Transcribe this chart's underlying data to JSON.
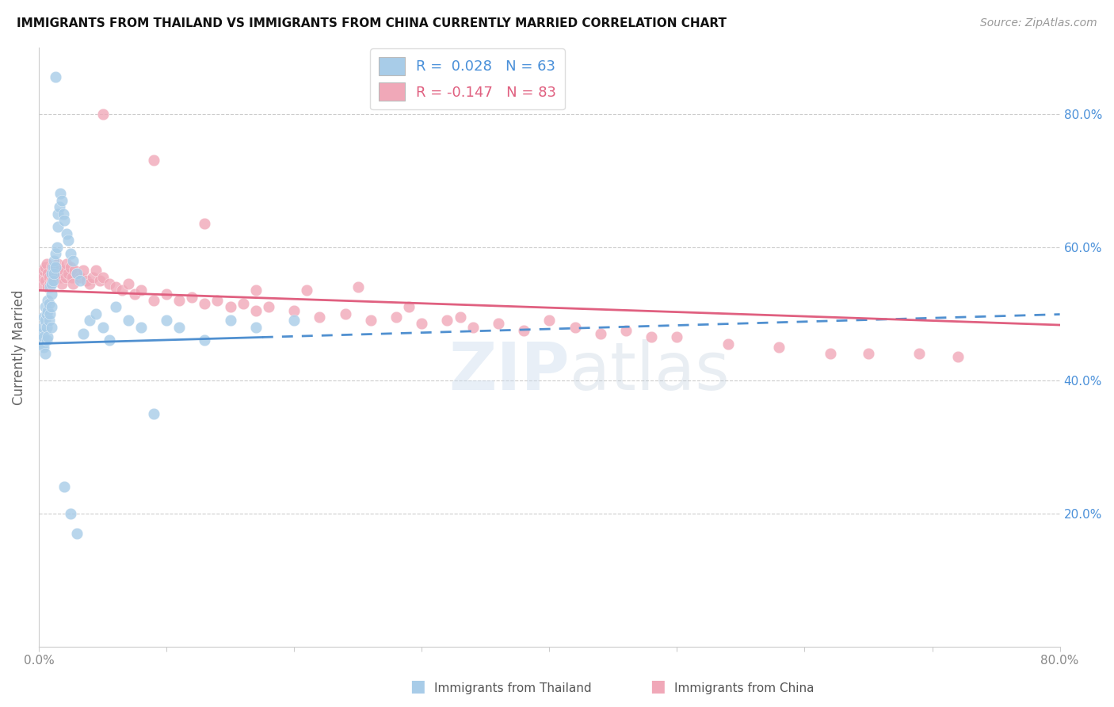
{
  "title": "IMMIGRANTS FROM THAILAND VS IMMIGRANTS FROM CHINA CURRENTLY MARRIED CORRELATION CHART",
  "source": "Source: ZipAtlas.com",
  "ylabel": "Currently Married",
  "xlim": [
    0.0,
    0.8
  ],
  "ylim": [
    0.0,
    0.9
  ],
  "xtick_vals": [
    0.0,
    0.1,
    0.2,
    0.3,
    0.4,
    0.5,
    0.6,
    0.7,
    0.8
  ],
  "xtick_labels": [
    "0.0%",
    "",
    "",
    "",
    "",
    "",
    "",
    "",
    "80.0%"
  ],
  "ytick_vals": [
    0.2,
    0.4,
    0.6,
    0.8
  ],
  "ytick_labels_right": [
    "20.0%",
    "40.0%",
    "60.0%",
    "80.0%"
  ],
  "legend_R_thailand": "0.028",
  "legend_N_thailand": "63",
  "legend_R_china": "-0.147",
  "legend_N_china": "83",
  "color_thailand": "#a8cce8",
  "color_china": "#f0a8b8",
  "color_trendline_thailand": "#5090d0",
  "color_trendline_china": "#e06080",
  "watermark": "ZIPatlas",
  "trendline_thailand_x0": 0.0,
  "trendline_thailand_y0": 0.455,
  "trendline_thailand_slope": 0.055,
  "trendline_thailand_solid_end": 0.175,
  "trendline_china_x0": 0.0,
  "trendline_china_y0": 0.535,
  "trendline_china_slope": -0.065,
  "thailand_x": [
    0.002,
    0.003,
    0.003,
    0.004,
    0.004,
    0.004,
    0.005,
    0.005,
    0.005,
    0.006,
    0.006,
    0.006,
    0.007,
    0.007,
    0.007,
    0.008,
    0.008,
    0.009,
    0.009,
    0.01,
    0.01,
    0.01,
    0.01,
    0.01,
    0.011,
    0.011,
    0.012,
    0.012,
    0.013,
    0.013,
    0.014,
    0.015,
    0.015,
    0.016,
    0.017,
    0.018,
    0.019,
    0.02,
    0.022,
    0.023,
    0.025,
    0.027,
    0.03,
    0.032,
    0.035,
    0.04,
    0.045,
    0.05,
    0.055,
    0.06,
    0.07,
    0.08,
    0.09,
    0.1,
    0.11,
    0.13,
    0.15,
    0.17,
    0.2,
    0.013,
    0.02,
    0.025,
    0.03
  ],
  "thailand_y": [
    0.47,
    0.455,
    0.48,
    0.495,
    0.465,
    0.45,
    0.51,
    0.49,
    0.44,
    0.5,
    0.48,
    0.46,
    0.52,
    0.505,
    0.465,
    0.515,
    0.49,
    0.54,
    0.5,
    0.56,
    0.545,
    0.53,
    0.51,
    0.48,
    0.57,
    0.55,
    0.58,
    0.56,
    0.59,
    0.57,
    0.6,
    0.65,
    0.63,
    0.66,
    0.68,
    0.67,
    0.65,
    0.64,
    0.62,
    0.61,
    0.59,
    0.58,
    0.56,
    0.55,
    0.47,
    0.49,
    0.5,
    0.48,
    0.46,
    0.51,
    0.49,
    0.48,
    0.35,
    0.49,
    0.48,
    0.46,
    0.49,
    0.48,
    0.49,
    0.855,
    0.24,
    0.2,
    0.17
  ],
  "china_x": [
    0.002,
    0.003,
    0.004,
    0.005,
    0.005,
    0.006,
    0.007,
    0.007,
    0.008,
    0.009,
    0.01,
    0.01,
    0.011,
    0.012,
    0.013,
    0.014,
    0.015,
    0.016,
    0.017,
    0.018,
    0.02,
    0.021,
    0.022,
    0.023,
    0.025,
    0.026,
    0.027,
    0.028,
    0.03,
    0.032,
    0.035,
    0.037,
    0.04,
    0.042,
    0.045,
    0.048,
    0.05,
    0.055,
    0.06,
    0.065,
    0.07,
    0.075,
    0.08,
    0.09,
    0.1,
    0.11,
    0.12,
    0.13,
    0.14,
    0.15,
    0.16,
    0.17,
    0.18,
    0.2,
    0.22,
    0.24,
    0.26,
    0.28,
    0.3,
    0.32,
    0.34,
    0.36,
    0.38,
    0.4,
    0.42,
    0.44,
    0.46,
    0.48,
    0.5,
    0.54,
    0.58,
    0.62,
    0.65,
    0.69,
    0.72,
    0.05,
    0.09,
    0.13,
    0.17,
    0.21,
    0.25,
    0.29,
    0.33
  ],
  "china_y": [
    0.545,
    0.555,
    0.565,
    0.57,
    0.55,
    0.575,
    0.56,
    0.54,
    0.555,
    0.545,
    0.57,
    0.55,
    0.565,
    0.555,
    0.57,
    0.56,
    0.575,
    0.565,
    0.555,
    0.545,
    0.565,
    0.555,
    0.575,
    0.56,
    0.57,
    0.555,
    0.545,
    0.565,
    0.56,
    0.555,
    0.565,
    0.55,
    0.545,
    0.555,
    0.565,
    0.55,
    0.555,
    0.545,
    0.54,
    0.535,
    0.545,
    0.53,
    0.535,
    0.52,
    0.53,
    0.52,
    0.525,
    0.515,
    0.52,
    0.51,
    0.515,
    0.505,
    0.51,
    0.505,
    0.495,
    0.5,
    0.49,
    0.495,
    0.485,
    0.49,
    0.48,
    0.485,
    0.475,
    0.49,
    0.48,
    0.47,
    0.475,
    0.465,
    0.465,
    0.455,
    0.45,
    0.44,
    0.44,
    0.44,
    0.435,
    0.8,
    0.73,
    0.635,
    0.535,
    0.535,
    0.54,
    0.51,
    0.495
  ]
}
